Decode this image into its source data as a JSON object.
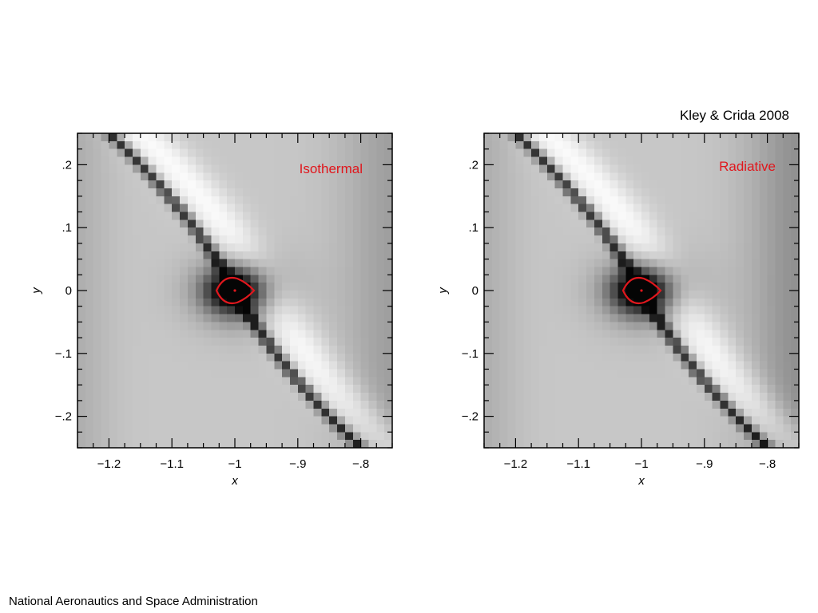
{
  "citation": "Kley & Crida 2008",
  "footer": "National Aeronautics and Space Administration",
  "colors": {
    "label": "#e0171d",
    "roche_lobe": "#e0171d",
    "frame": "#000000"
  },
  "chart_data": [
    {
      "type": "heatmap",
      "label": "Isothermal",
      "xlabel": "x",
      "ylabel": "y",
      "xlim": [
        -1.25,
        -0.75
      ],
      "ylim": [
        -0.25,
        0.25
      ],
      "xticks": [
        -1.2,
        -1.1,
        -1.0,
        -0.9,
        -0.8
      ],
      "xtick_labels": [
        "−1.2",
        "−1.1",
        "−1",
        "−.9",
        "−.8"
      ],
      "yticks": [
        -0.2,
        -0.1,
        0,
        0.1,
        0.2
      ],
      "ytick_labels": [
        "−.2",
        "−.1",
        "0",
        ".1",
        ".2"
      ],
      "planet": {
        "x": -1.0,
        "y": 0.0
      },
      "colormap": "grayscale",
      "grid": false
    },
    {
      "type": "heatmap",
      "label": "Radiative",
      "xlabel": "x",
      "ylabel": "y",
      "xlim": [
        -1.25,
        -0.75
      ],
      "ylim": [
        -0.25,
        0.25
      ],
      "xticks": [
        -1.2,
        -1.1,
        -1.0,
        -0.9,
        -0.8
      ],
      "xtick_labels": [
        "−1.2",
        "−1.1",
        "−1",
        "−.9",
        "−.8"
      ],
      "yticks": [
        -0.2,
        -0.1,
        0,
        0.1,
        0.2
      ],
      "ytick_labels": [
        "−.2",
        "−.1",
        "0",
        ".1",
        ".2"
      ],
      "planet": {
        "x": -1.0,
        "y": 0.0
      },
      "colormap": "grayscale",
      "grid": false
    }
  ]
}
